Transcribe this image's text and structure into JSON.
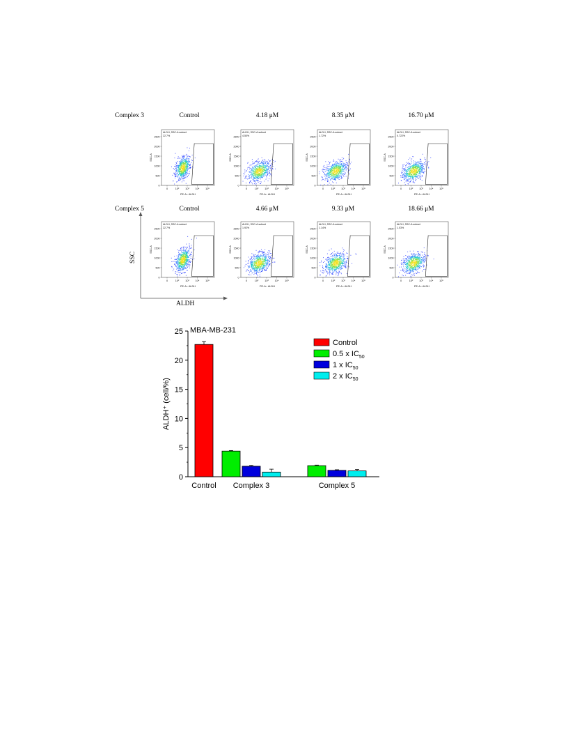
{
  "figure": {
    "rows": [
      {
        "label": "Complex 3",
        "panels": [
          {
            "heading": "Control",
            "gate_name": "ALDH, SSC-A subset",
            "gate_percent": "22.7%"
          },
          {
            "heading": "4.18 μM",
            "gate_name": "ALDH, SSC-A subset",
            "gate_percent": "4.50%"
          },
          {
            "heading": "8.35 μM",
            "gate_name": "ALDH, SSC-A subset",
            "gate_percent": "1.72%"
          },
          {
            "heading": "16.70 μM",
            "gate_name": "ALDH, SSC-A subset",
            "gate_percent": "0.722%"
          }
        ]
      },
      {
        "label": "Complex 5",
        "panels": [
          {
            "heading": "Control",
            "gate_name": "ALDH, SSC-A subset",
            "gate_percent": "22.7%"
          },
          {
            "heading": "4.66 μM",
            "gate_name": "ALDH, SSC-A subset",
            "gate_percent": "1.92%"
          },
          {
            "heading": "9.33 μM",
            "gate_name": "ALDH, SSC-A subset",
            "gate_percent": "1.14%"
          },
          {
            "heading": "18.66 μM",
            "gate_name": "ALDH, SSC-A subset",
            "gate_percent": "1.03%"
          }
        ]
      }
    ],
    "panel_ylabel": "SSC-A",
    "panel_xlabel": "PE-A:: ALDH",
    "panel_yticks": [
      "2500",
      "2000",
      "1500",
      "1000",
      "500",
      "0"
    ],
    "panel_xticks": [
      "0",
      "10²",
      "10³",
      "10⁴",
      "10⁵"
    ],
    "big_ylabel": "SSC",
    "big_xlabel": "ALDH"
  },
  "chart_data": {
    "type": "bar",
    "title": "MBA-MB-231",
    "ylabel": "ALDH⁺ (cell/%)",
    "xlabel": "",
    "ylim": [
      0,
      25
    ],
    "yticks": [
      0,
      5,
      10,
      15,
      20,
      25
    ],
    "categories": [
      "Control",
      "Complex 3",
      "Complex 5"
    ],
    "legend_position": "top-right",
    "series": [
      {
        "name": "Control",
        "color": "#ff0000",
        "values": [
          22.7,
          null,
          null
        ],
        "errors": [
          0.5,
          null,
          null
        ]
      },
      {
        "name": "0.5 x IC50",
        "color": "#00ee00",
        "values": [
          null,
          4.4,
          1.9
        ],
        "errors": [
          null,
          0.1,
          0.1
        ]
      },
      {
        "name": "1 x IC50",
        "color": "#0000dd",
        "values": [
          null,
          1.8,
          1.1
        ],
        "errors": [
          null,
          0.15,
          0.1
        ]
      },
      {
        "name": "2 x IC50",
        "color": "#00eeee",
        "values": [
          null,
          0.8,
          1.0
        ],
        "errors": [
          null,
          0.5,
          0.25
        ]
      }
    ],
    "legend_labels": [
      {
        "main": "Control",
        "sub": ""
      },
      {
        "main": "0.5 x IC",
        "sub": "50"
      },
      {
        "main": "1 x IC",
        "sub": "50"
      },
      {
        "main": "2 x IC",
        "sub": "50"
      }
    ]
  }
}
